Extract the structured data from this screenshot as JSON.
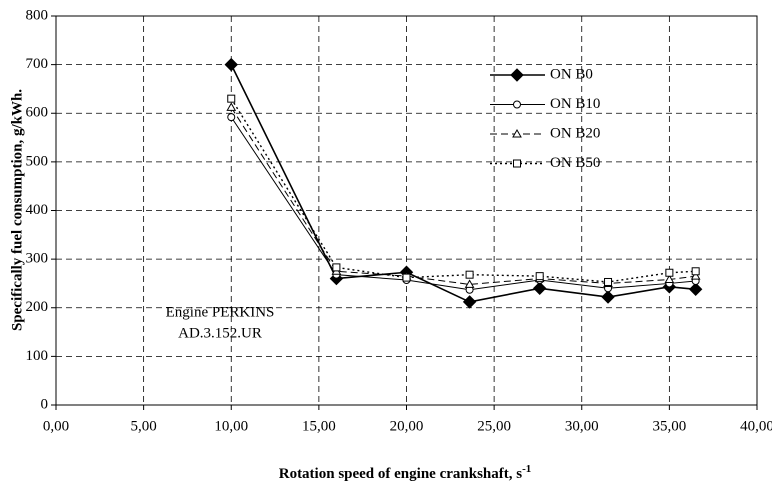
{
  "chart_data": {
    "type": "line",
    "xlabel": "Rotation speed of engine crankshaft, s",
    "xlabel_superscript": "-1",
    "ylabel": "Specifically fuel consumption, g/kWh.",
    "annotation": [
      "Engine PERKINS",
      "AD.3.152.UR"
    ],
    "x": [
      10,
      16,
      20,
      23.6,
      27.6,
      31.5,
      35,
      36.5
    ],
    "series": [
      {
        "name": "ON B0",
        "color": "#000000",
        "marker": "diamond",
        "dash": "solid",
        "values": [
          700,
          260,
          273,
          212,
          240,
          222,
          243,
          238
        ]
      },
      {
        "name": "ON B10",
        "color": "#000000",
        "marker": "circle",
        "dash": "thin",
        "values": [
          592,
          268,
          257,
          237,
          257,
          240,
          250,
          255
        ]
      },
      {
        "name": "ON B20",
        "color": "#000000",
        "marker": "triangle",
        "dash": "dashed",
        "values": [
          612,
          275,
          265,
          248,
          260,
          250,
          258,
          265
        ]
      },
      {
        "name": "ON B50",
        "color": "#000000",
        "marker": "square",
        "dash": "dotted",
        "values": [
          630,
          283,
          262,
          268,
          265,
          253,
          272,
          275
        ]
      }
    ],
    "xlim": [
      0,
      40
    ],
    "xticks": [
      {
        "value": 0,
        "label": "0,00"
      },
      {
        "value": 5,
        "label": "5,00"
      },
      {
        "value": 10,
        "label": "10,00"
      },
      {
        "value": 15,
        "label": "15,00"
      },
      {
        "value": 20,
        "label": "20,00"
      },
      {
        "value": 25,
        "label": "25,00"
      },
      {
        "value": 30,
        "label": "30,00"
      },
      {
        "value": 35,
        "label": "35,00"
      },
      {
        "value": 40,
        "label": "40,00"
      }
    ],
    "ylim": [
      0,
      800
    ],
    "yticks": [
      0,
      100,
      200,
      300,
      400,
      500,
      600,
      700,
      800
    ],
    "grid": true,
    "legend": "upper right"
  }
}
